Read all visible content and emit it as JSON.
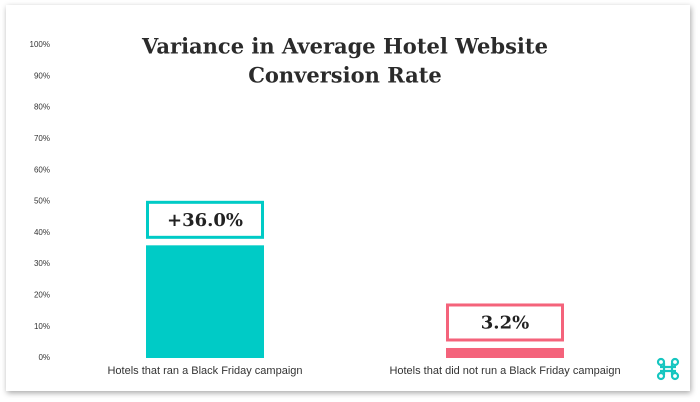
{
  "chart_data": {
    "type": "bar",
    "title": [
      "Variance in Average Hotel Website",
      "Conversion Rate"
    ],
    "categories": [
      "Hotels that ran a Black Friday campaign",
      "Hotels that did not run a Black Friday campaign"
    ],
    "values": [
      36.0,
      3.2
    ],
    "value_labels": [
      "+36.0%",
      "3.2%"
    ],
    "colors": [
      "#00cbc6",
      "#f4637b"
    ],
    "ylim": [
      0,
      100
    ],
    "yticks": [
      {
        "value": 0,
        "label": "0%"
      },
      {
        "value": 10,
        "label": "10%"
      },
      {
        "value": 20,
        "label": "20%"
      },
      {
        "value": 30,
        "label": "30%"
      },
      {
        "value": 40,
        "label": "40%"
      },
      {
        "value": 50,
        "label": "50%"
      },
      {
        "value": 60,
        "label": "60%"
      },
      {
        "value": 70,
        "label": "70%"
      },
      {
        "value": 80,
        "label": "80%"
      },
      {
        "value": 90,
        "label": "90%"
      },
      {
        "value": 100,
        "label": "100%"
      }
    ],
    "grid": false
  }
}
